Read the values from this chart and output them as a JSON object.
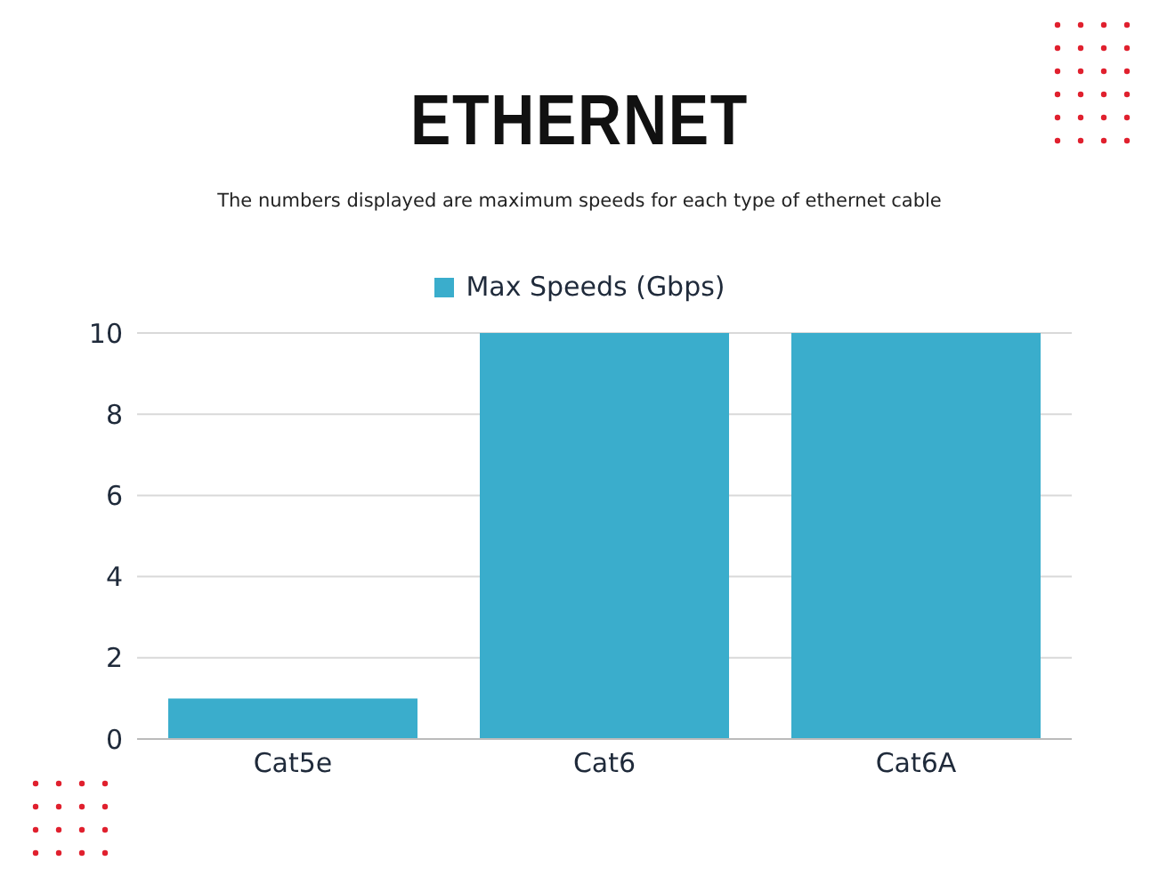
{
  "chart_data": {
    "type": "bar",
    "title": "ETHERNET",
    "subtitle": "The numbers displayed are maximum speeds for each type of ethernet cable",
    "categories": [
      "Cat5e",
      "Cat6",
      "Cat6A"
    ],
    "series": [
      {
        "name": "Max Speeds (Gbps)",
        "color": "#3aadcc",
        "values": [
          1,
          10,
          10
        ]
      }
    ],
    "ylim": [
      0,
      10
    ],
    "yticks": [
      0,
      2,
      4,
      6,
      8,
      10
    ],
    "grid": "y",
    "legend": "top"
  }
}
